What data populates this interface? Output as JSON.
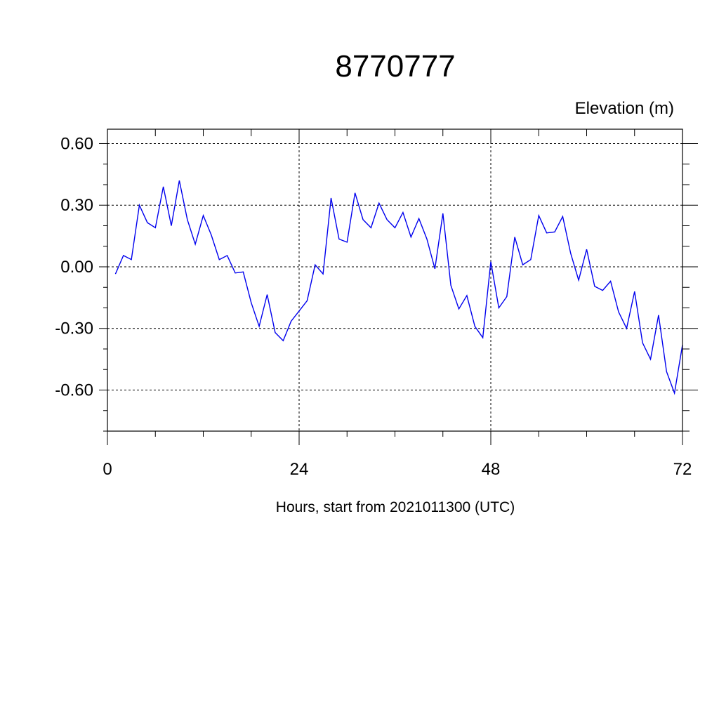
{
  "chart_data": {
    "type": "line",
    "title": "8770777",
    "ylabel": "Elevation (m)",
    "xlabel": "Hours, start from 2021011300 (UTC)",
    "xlim": [
      0,
      72
    ],
    "ylim": [
      -0.8,
      0.67
    ],
    "xticks": [
      0,
      24,
      48,
      72
    ],
    "xtick_labels": [
      "0",
      "24",
      "48",
      "72"
    ],
    "xminor_step": 6,
    "yticks": [
      0.6,
      0.3,
      0.0,
      -0.3,
      -0.6
    ],
    "ytick_labels": [
      "0.60",
      "0.30",
      "0.00",
      "-0.30",
      "-0.60"
    ],
    "yminor_step": 0.1,
    "grid": true,
    "legend": "none",
    "series": [
      {
        "color": "#0000ee",
        "x": [
          1,
          2,
          3,
          4,
          5,
          6,
          7,
          8,
          9,
          10,
          11,
          12,
          13,
          14,
          15,
          16,
          17,
          18,
          19,
          20,
          21,
          22,
          23,
          24,
          25,
          26,
          27,
          28,
          29,
          30,
          31,
          32,
          33,
          34,
          35,
          36,
          37,
          38,
          39,
          40,
          41,
          42,
          43,
          44,
          45,
          46,
          47,
          48,
          49,
          50,
          51,
          52,
          53,
          54,
          55,
          56,
          57,
          58,
          59,
          60,
          61,
          62,
          63,
          64,
          65,
          66,
          67,
          68,
          69,
          70,
          71,
          72
        ],
        "values": [
          -0.035,
          0.055,
          0.035,
          0.3,
          0.215,
          0.19,
          0.39,
          0.2,
          0.42,
          0.23,
          0.11,
          0.25,
          0.155,
          0.035,
          0.055,
          -0.03,
          -0.025,
          -0.175,
          -0.29,
          -0.135,
          -0.32,
          -0.36,
          -0.265,
          -0.215,
          -0.165,
          0.01,
          -0.035,
          0.335,
          0.135,
          0.12,
          0.36,
          0.23,
          0.19,
          0.31,
          0.23,
          0.19,
          0.265,
          0.145,
          0.235,
          0.135,
          -0.01,
          0.26,
          -0.09,
          -0.205,
          -0.14,
          -0.29,
          -0.345,
          0.025,
          -0.2,
          -0.145,
          0.145,
          0.01,
          0.035,
          0.25,
          0.165,
          0.17,
          0.245,
          0.065,
          -0.065,
          0.085,
          -0.095,
          -0.115,
          -0.07,
          -0.22,
          -0.3,
          -0.12,
          -0.37,
          -0.45,
          -0.235,
          -0.51,
          -0.615,
          -0.38
        ]
      }
    ]
  }
}
